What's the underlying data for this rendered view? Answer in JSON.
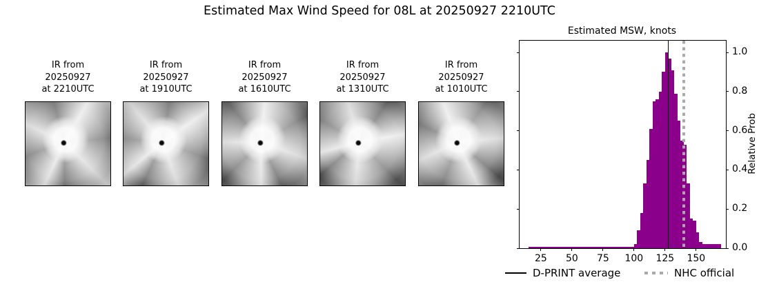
{
  "header": {
    "title": "Estimated Max Wind Speed for 08L at 20250927 2210UTC"
  },
  "panels": [
    {
      "line1": "IR from",
      "line2": "20250927",
      "line3": "at 2210UTC"
    },
    {
      "line1": "IR from",
      "line2": "20250927",
      "line3": "at 1910UTC"
    },
    {
      "line1": "IR from",
      "line2": "20250927",
      "line3": "at 1610UTC"
    },
    {
      "line1": "IR from",
      "line2": "20250927",
      "line3": "at 1310UTC"
    },
    {
      "line1": "IR from",
      "line2": "20250927",
      "line3": "at 1010UTC"
    }
  ],
  "chart_data": {
    "type": "bar",
    "title": "Estimated MSW, knots",
    "ylabel_right": "Relative Prob",
    "xlabel": "",
    "xlim": [
      7.8,
      174
    ],
    "ylim": [
      0,
      1.06
    ],
    "x_ticks": [
      25,
      50,
      75,
      100,
      125,
      150
    ],
    "y_ticks": [
      0.0,
      0.2,
      0.4,
      0.6,
      0.8,
      1.0
    ],
    "grid": false,
    "bar_color": "#8B008B",
    "bars": [
      {
        "x0": 15,
        "x1": 100,
        "p": 0.008
      },
      {
        "x0": 100,
        "x1": 102.5,
        "p": 0.02
      },
      {
        "x0": 102.5,
        "x1": 105,
        "p": 0.09
      },
      {
        "x0": 105,
        "x1": 107.5,
        "p": 0.18
      },
      {
        "x0": 107.5,
        "x1": 110,
        "p": 0.33
      },
      {
        "x0": 110,
        "x1": 112.5,
        "p": 0.45
      },
      {
        "x0": 112.5,
        "x1": 115,
        "p": 0.61
      },
      {
        "x0": 115,
        "x1": 117.5,
        "p": 0.75
      },
      {
        "x0": 117.5,
        "x1": 120,
        "p": 0.76
      },
      {
        "x0": 120,
        "x1": 122.5,
        "p": 0.8
      },
      {
        "x0": 122.5,
        "x1": 125,
        "p": 0.9
      },
      {
        "x0": 125,
        "x1": 127.5,
        "p": 1.0
      },
      {
        "x0": 127.5,
        "x1": 130,
        "p": 0.97
      },
      {
        "x0": 130,
        "x1": 132.5,
        "p": 0.91
      },
      {
        "x0": 132.5,
        "x1": 135,
        "p": 0.79
      },
      {
        "x0": 135,
        "x1": 137.5,
        "p": 0.65
      },
      {
        "x0": 137.5,
        "x1": 140,
        "p": 0.55
      },
      {
        "x0": 140,
        "x1": 142.5,
        "p": 0.53
      },
      {
        "x0": 142.5,
        "x1": 145,
        "p": 0.33
      },
      {
        "x0": 145,
        "x1": 147.5,
        "p": 0.15
      },
      {
        "x0": 147.5,
        "x1": 150,
        "p": 0.14
      },
      {
        "x0": 150,
        "x1": 152.5,
        "p": 0.08
      },
      {
        "x0": 152.5,
        "x1": 155,
        "p": 0.03
      },
      {
        "x0": 155,
        "x1": 170,
        "p": 0.02
      }
    ],
    "vlines": [
      {
        "name": "dprint-average-line",
        "x": 127.5,
        "style": "solid",
        "color": "#000000"
      },
      {
        "name": "nhc-official-line",
        "x": 140,
        "style": "dotted",
        "color": "#aaaaaa"
      }
    ],
    "legend": [
      {
        "label": "D-PRINT average",
        "style": "solid",
        "color": "#000000"
      },
      {
        "label": "NHC official",
        "style": "dotted",
        "color": "#aaaaaa"
      }
    ],
    "legend_position": "bottom"
  }
}
